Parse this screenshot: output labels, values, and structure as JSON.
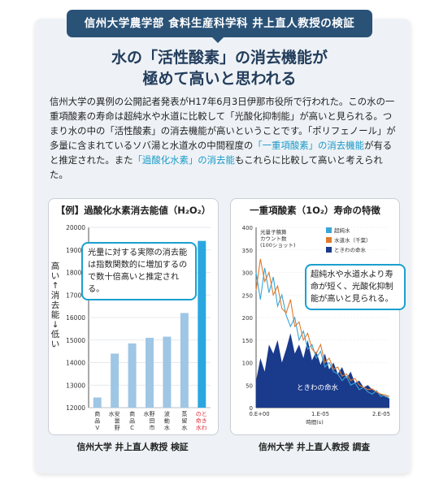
{
  "banner": "信州大学農学部 食料生産科学科 井上直人教授の検証",
  "headline": {
    "line1": "水の「活性酸素」の消去機能が",
    "line2": "極めて高いと思われる"
  },
  "body": {
    "p1": "信州大学の異例の公開記者発表がH17年6月3日伊那市役所で行われた。この水の一重項酸素の寿命は超純水や水道に比較して「光酸化抑制能」が高いと見られる。つまり水の中の「活性酸素」の消去機能が高いということです。「ポリフェノール」が多量に含まれているソバ湯と水道水の中間程度の",
    "hl1": "「一重項酸素」の消去機能",
    "p2": "が有ると推定された。また",
    "hl2": "「過酸化水素」の消去能",
    "p3": "もこれらに比較して高いと考えられた。"
  },
  "chart_data": [
    {
      "type": "bar",
      "title": "【例】過酸化水素消去能値（H₂O₂）",
      "categories": [
        "商品V",
        "安曇野水",
        "商品C",
        "野田市水",
        "波動水",
        "蒸留水",
        "ときわの命水"
      ],
      "values": [
        12450,
        14400,
        14850,
        15100,
        15150,
        16200,
        19400
      ],
      "ylim": [
        12000,
        20000
      ],
      "yticks": [
        12000,
        13000,
        14000,
        15000,
        16000,
        17000,
        18000,
        19000,
        20000
      ],
      "ylabel": "高い ↑ 消去能 ↓ 低い",
      "colors": {
        "normal": "#9fc6e4",
        "highlight": "#2aa7e0"
      },
      "callout": "光量に対する実際の消去能は指数関数的に増加するので数十倍高いと推定される。",
      "caption": "信州大学 井上直人教授 検証"
    },
    {
      "type": "line",
      "title": "一重項酸素（1O₂）寿命の特徴",
      "ylabel_lines": [
        "光量子積算",
        "カウント数",
        "(100ショット)"
      ],
      "xticks": [
        "0.E+00",
        "1.E-05",
        "2.E-05"
      ],
      "xlabel": "時間(s)",
      "yticks": [
        0,
        50,
        100,
        150,
        200,
        250,
        300,
        350,
        400
      ],
      "ylim": [
        0,
        400
      ],
      "xlim": [
        0,
        2.4e-05
      ],
      "series": [
        {
          "name": "超純水",
          "color": "#3aa6d8",
          "values": [
            300,
            240,
            310,
            255,
            290,
            225,
            250,
            205,
            180,
            200,
            150,
            170,
            130,
            140,
            110,
            125,
            90,
            100,
            80,
            75,
            60,
            70,
            50,
            55,
            40,
            45,
            35,
            30,
            38,
            25,
            28,
            20
          ]
        },
        {
          "name": "水道水（千葉）",
          "color": "#e07a2a",
          "values": [
            260,
            330,
            280,
            300,
            250,
            270,
            220,
            210,
            240,
            180,
            190,
            150,
            165,
            130,
            120,
            140,
            100,
            110,
            85,
            90,
            70,
            75,
            60,
            65,
            50,
            45,
            40,
            42,
            35,
            30,
            28,
            25
          ]
        },
        {
          "name": "ときわの命水",
          "color": "#1a3a8c",
          "values": [
            60,
            110,
            80,
            140,
            120,
            150,
            100,
            130,
            165,
            120,
            140,
            110,
            150,
            105,
            125,
            95,
            120,
            85,
            100,
            75,
            90,
            65,
            80,
            55,
            60,
            45,
            50,
            40,
            35,
            30,
            25,
            20
          ]
        }
      ],
      "area_label": "ときわの命水",
      "callout": "超純水や水道水より寿命が短く、光酸化抑制能が高いと見られる。",
      "caption": "信州大学 井上直人教授 調査"
    }
  ]
}
